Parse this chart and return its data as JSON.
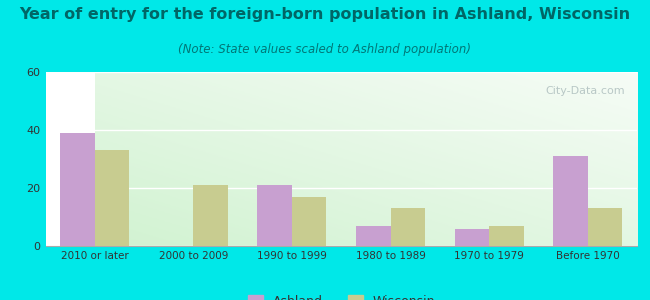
{
  "title": "Year of entry for the foreign-born population in Ashland, Wisconsin",
  "subtitle": "(Note: State values scaled to Ashland population)",
  "categories": [
    "2010 or later",
    "2000 to 2009",
    "1990 to 1999",
    "1980 to 1989",
    "1970 to 1979",
    "Before 1970"
  ],
  "ashland_values": [
    39,
    0,
    21,
    7,
    6,
    31
  ],
  "wisconsin_values": [
    33,
    21,
    17,
    13,
    7,
    13
  ],
  "ashland_color": "#c8a0d0",
  "wisconsin_color": "#c8cc90",
  "background_outer": "#00e8e8",
  "ylim": [
    0,
    60
  ],
  "yticks": [
    0,
    20,
    40,
    60
  ],
  "bar_width": 0.35,
  "title_fontsize": 11.5,
  "subtitle_fontsize": 8.5,
  "watermark": "City-Data.com"
}
